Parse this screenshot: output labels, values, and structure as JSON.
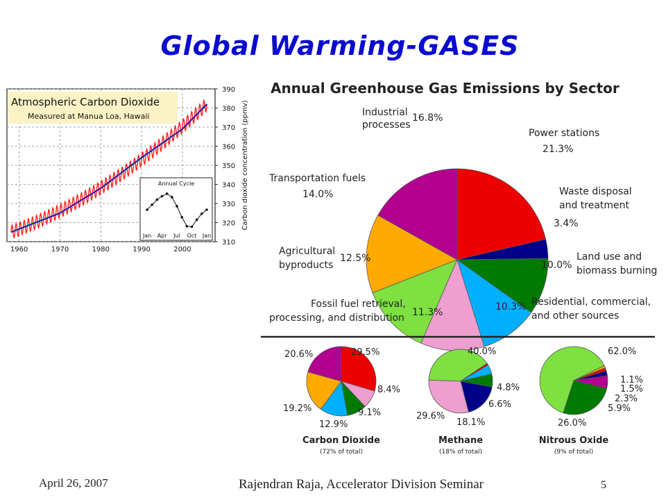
{
  "slide": {
    "title": "Global Warming-GASES",
    "footer_date": "April 26, 2007",
    "footer_author": "Rajendran Raja, Accelerator Division Seminar",
    "page_number": "5"
  },
  "colors": {
    "title": "#0b0bd0",
    "power_stations": "#ee0000",
    "waste_disposal": "#000088",
    "land_use": "#007a00",
    "residential": "#00b0ff",
    "fossil_fuel": "#ee9fcf",
    "agricultural": "#7ee041",
    "transportation": "#ffaa00",
    "industrial": "#b3008f",
    "co2_seasonal": "#ff2020",
    "co2_trend": "#1a1aaa"
  },
  "chart_data": [
    {
      "type": "line",
      "title": "Atmospheric Carbon Dioxide",
      "subtitle": "Measured at Manua Loa, Hawaii",
      "ylabel": "Carbon dioxide concentration (ppmv)",
      "xlabel": "",
      "x_ticks": [
        "1960",
        "1970",
        "1980",
        "1990",
        "2000"
      ],
      "y_ticks": [
        "390",
        "380",
        "370",
        "360",
        "350",
        "340",
        "330",
        "320",
        "310"
      ],
      "xlim": [
        1957,
        2008
      ],
      "ylim": [
        310,
        390
      ],
      "grid": true,
      "series": [
        {
          "role": "monthly",
          "x_start": 1958,
          "x_end": 2006,
          "y_start": 315,
          "y_end": 382,
          "seasonal_amplitude": 3.5
        },
        {
          "role": "trend",
          "x": [
            1958,
            1970,
            1980,
            1990,
            2000,
            2006
          ],
          "y": [
            315,
            325,
            338,
            354,
            369,
            382
          ]
        }
      ],
      "inset": {
        "title": "Annual Cycle",
        "x_ticks": [
          "Jan",
          "Apr",
          "Jul",
          "Oct",
          "Jan"
        ],
        "values": [
          0.0,
          1.0,
          2.0,
          2.7,
          3.2,
          2.5,
          0.7,
          -1.5,
          -3.3,
          -3.4,
          -2.0,
          -0.8,
          0.0
        ]
      }
    },
    {
      "type": "pie",
      "title": "Annual Greenhouse Gas Emissions by Sector",
      "slices": [
        {
          "label": "Power stations",
          "value": 21.3,
          "pct": "21.3%",
          "color_key": "power_stations"
        },
        {
          "label": "Waste disposal and treatment",
          "value": 3.4,
          "pct": "3.4%",
          "color_key": "waste_disposal"
        },
        {
          "label": "Land use and biomass burning",
          "value": 10.0,
          "pct": "10.0%",
          "color_key": "land_use"
        },
        {
          "label": "Residential, commercial, and other sources",
          "value": 10.3,
          "pct": "10.3%",
          "color_key": "residential"
        },
        {
          "label": "Fossil fuel retrieval, processing, and distribution",
          "value": 11.3,
          "pct": "11.3%",
          "color_key": "fossil_fuel"
        },
        {
          "label": "Agricultural byproducts",
          "value": 12.5,
          "pct": "12.5%",
          "color_key": "agricultural"
        },
        {
          "label": "Transportation fuels",
          "value": 14.0,
          "pct": "14.0%",
          "color_key": "transportation"
        },
        {
          "label": "Industrial processes",
          "value": 16.8,
          "pct": "16.8%",
          "color_key": "industrial"
        }
      ],
      "label_text": {
        "power1": "Power stations",
        "power_pct": "21.3%",
        "waste1": "Waste disposal",
        "waste2": "and treatment",
        "waste_pct": "3.4%",
        "land1": "Land use and",
        "land2": "biomass burning",
        "land_pct": "10.0%",
        "res1": "Residential, commercial,",
        "res2": "and other sources",
        "res_pct": "10.3%",
        "fossil1": "Fossil fuel retrieval,",
        "fossil2": "processing, and distribution",
        "fossil_pct": "11.3%",
        "agri1": "Agricultural",
        "agri2": "byproducts",
        "agri_pct": "12.5%",
        "trans1": "Transportation fuels",
        "trans_pct": "14.0%",
        "ind1": "Industrial",
        "ind2": "processes",
        "ind_pct": "16.8%"
      }
    },
    {
      "type": "pie",
      "title": "Carbon Dioxide",
      "subtitle": "(72% of total)",
      "slices": [
        {
          "value": 29.5,
          "pct": "29.5%",
          "color_key": "power_stations"
        },
        {
          "value": 8.4,
          "pct": "8.4%",
          "color_key": "fossil_fuel"
        },
        {
          "value": 9.1,
          "pct": "9.1%",
          "color_key": "land_use"
        },
        {
          "value": 12.9,
          "pct": "12.9%",
          "color_key": "residential"
        },
        {
          "value": 19.2,
          "pct": "19.2%",
          "color_key": "transportation"
        },
        {
          "value": 20.6,
          "pct": "20.6%",
          "color_key": "industrial"
        }
      ]
    },
    {
      "type": "pie",
      "title": "Methane",
      "subtitle": "(18% of total)",
      "slices": [
        {
          "value": 40.0,
          "pct": "40.0%",
          "color_key": "agricultural"
        },
        {
          "value": 1.0,
          "pct": "",
          "color_key": "power_stations"
        },
        {
          "value": 4.8,
          "pct": "4.8%",
          "color_key": "residential"
        },
        {
          "value": 6.6,
          "pct": "6.6%",
          "color_key": "land_use"
        },
        {
          "value": 18.1,
          "pct": "18.1%",
          "color_key": "waste_disposal"
        },
        {
          "value": 29.6,
          "pct": "29.6%",
          "color_key": "fossil_fuel"
        }
      ]
    },
    {
      "type": "pie",
      "title": "Nitrous Oxide",
      "subtitle": "(9% of total)",
      "slices": [
        {
          "value": 62.0,
          "pct": "62.0%",
          "color_key": "agricultural"
        },
        {
          "value": 1.1,
          "pct": "1.1%",
          "color_key": "transportation"
        },
        {
          "value": 1.5,
          "pct": "1.5%",
          "color_key": "power_stations"
        },
        {
          "value": 2.3,
          "pct": "2.3%",
          "color_key": "waste_disposal"
        },
        {
          "value": 5.9,
          "pct": "5.9%",
          "color_key": "industrial"
        },
        {
          "value": 26.0,
          "pct": "26.0%",
          "color_key": "land_use"
        }
      ]
    }
  ]
}
